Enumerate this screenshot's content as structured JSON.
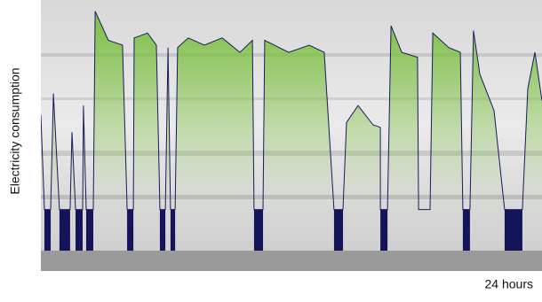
{
  "chart_data": {
    "type": "area",
    "y_label": "Electricity consumption",
    "x_label": "24 hours",
    "xlim": [
      0,
      24
    ],
    "ylim": [
      0,
      100
    ],
    "line_color": "#1a1a5e",
    "fill_color": "#7dc142",
    "standby_color": "#14145a",
    "x": [
      0,
      0.17,
      0.47,
      0.6,
      0.89,
      1.4,
      1.49,
      1.66,
      2.0,
      2.04,
      2.17,
      2.51,
      2.6,
      3.23,
      3.91,
      4.13,
      4.43,
      4.47,
      5.11,
      5.53,
      5.7,
      5.96,
      6.09,
      6.21,
      6.43,
      6.55,
      7.06,
      7.83,
      8.68,
      9.53,
      10.13,
      10.21,
      10.64,
      10.72,
      11.87,
      12.85,
      13.57,
      14.04,
      14.47,
      14.64,
      15.19,
      15.91,
      16.26,
      16.26,
      16.6,
      16.77,
      17.28,
      18.04,
      18.09,
      18.64,
      18.77,
      19.53,
      20.09,
      20.21,
      20.55,
      20.72,
      21.02,
      21.7,
      22.21,
      23.06,
      23.32,
      23.66,
      24
    ],
    "values": [
      56,
      17,
      17,
      65,
      17,
      17,
      49,
      17,
      17,
      60,
      17,
      17,
      99,
      87,
      85,
      17,
      17,
      88,
      90,
      85,
      17,
      17,
      84,
      17,
      17,
      84,
      88,
      85,
      88,
      82,
      87,
      17,
      17,
      87,
      82,
      85,
      82,
      17,
      17,
      53,
      60,
      52,
      51,
      17,
      17,
      93,
      82,
      80,
      17,
      17,
      90,
      84,
      82,
      17,
      17,
      91,
      73,
      58,
      17,
      17,
      67,
      82,
      62
    ],
    "standby_level": 17,
    "standby": [
      [
        0.17,
        0.47
      ],
      [
        0.89,
        1.4
      ],
      [
        1.66,
        2.0
      ],
      [
        2.17,
        2.51
      ],
      [
        4.13,
        4.43
      ],
      [
        5.7,
        5.96
      ],
      [
        6.21,
        6.43
      ],
      [
        10.21,
        10.64
      ],
      [
        14.04,
        14.47
      ],
      [
        16.26,
        16.6
      ],
      [
        20.21,
        20.55
      ],
      [
        22.21,
        23.06
      ]
    ]
  }
}
